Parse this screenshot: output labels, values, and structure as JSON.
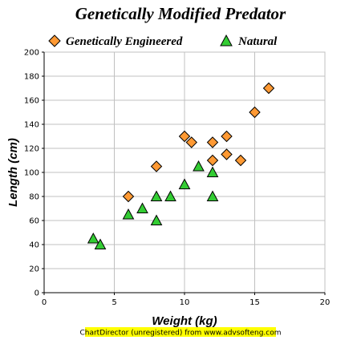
{
  "chart_data": {
    "type": "scatter",
    "title": "Genetically Modified Predator",
    "xlabel": "Weight (kg)",
    "ylabel": "Length (cm)",
    "xlim": [
      0,
      20
    ],
    "ylim": [
      0,
      200
    ],
    "x_ticks": [
      0,
      5,
      10,
      15,
      20
    ],
    "y_ticks": [
      0,
      20,
      40,
      60,
      80,
      100,
      120,
      140,
      160,
      180,
      200
    ],
    "grid": true,
    "legend_position": "top",
    "series": [
      {
        "name": "Genetically Engineered",
        "marker": "diamond",
        "color": "#ff9933",
        "points": [
          {
            "x": 6,
            "y": 80
          },
          {
            "x": 8,
            "y": 105
          },
          {
            "x": 10,
            "y": 130
          },
          {
            "x": 10.5,
            "y": 125
          },
          {
            "x": 12,
            "y": 110
          },
          {
            "x": 12,
            "y": 125
          },
          {
            "x": 13,
            "y": 115
          },
          {
            "x": 13,
            "y": 130
          },
          {
            "x": 14,
            "y": 110
          },
          {
            "x": 15,
            "y": 150
          },
          {
            "x": 16,
            "y": 170
          }
        ]
      },
      {
        "name": "Natural",
        "marker": "triangle",
        "color": "#33cc33",
        "points": [
          {
            "x": 3.5,
            "y": 45
          },
          {
            "x": 4,
            "y": 40
          },
          {
            "x": 6,
            "y": 65
          },
          {
            "x": 7,
            "y": 70
          },
          {
            "x": 8,
            "y": 80
          },
          {
            "x": 8,
            "y": 60
          },
          {
            "x": 9,
            "y": 80
          },
          {
            "x": 10,
            "y": 90
          },
          {
            "x": 11,
            "y": 105
          },
          {
            "x": 12,
            "y": 100
          },
          {
            "x": 12,
            "y": 80
          }
        ]
      }
    ]
  },
  "footer": {
    "text": "ChartDirector (unregistered) from www.advsofteng.com",
    "background": "#ffff00"
  }
}
